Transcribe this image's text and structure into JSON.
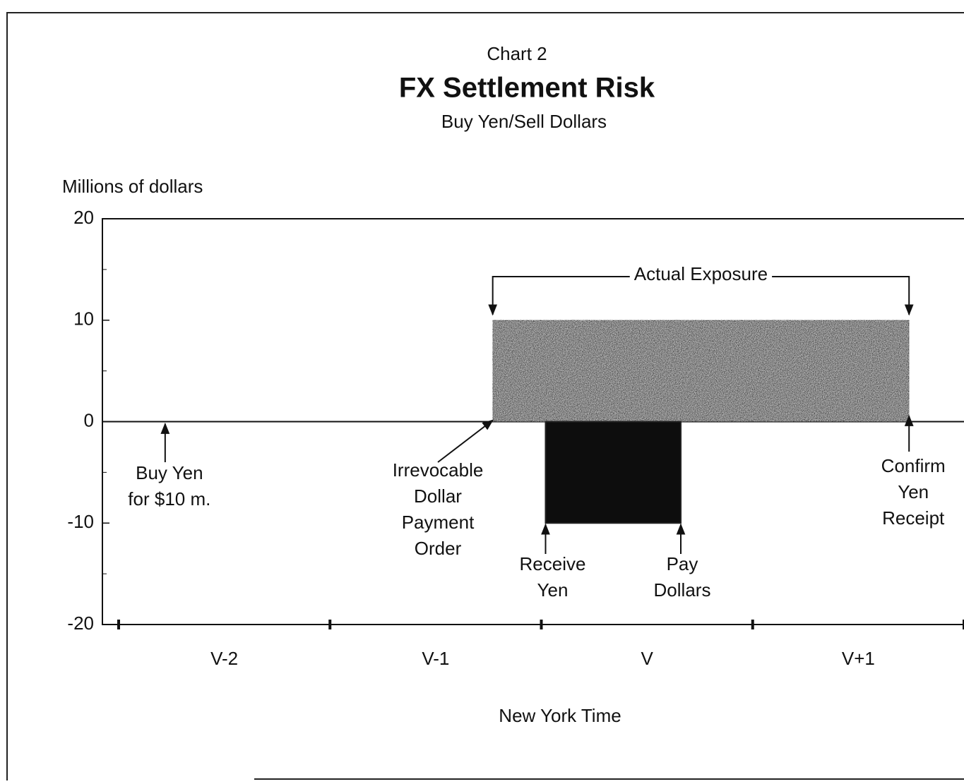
{
  "chart_data": {
    "type": "bar",
    "chart_label": "Chart 2",
    "title": "FX Settlement Risk",
    "subtitle": "Buy Yen/Sell Dollars",
    "y_label": "Millions of dollars",
    "x_label": "New York Time",
    "categories": [
      "V-2",
      "V-1",
      "V",
      "V+1"
    ],
    "xlim": [
      0,
      4
    ],
    "xticks": [
      0,
      1,
      2,
      3,
      4
    ],
    "ylim": [
      -20,
      20
    ],
    "yticks": [
      20,
      10,
      0,
      -10,
      -20
    ],
    "bars": [
      {
        "start": 1.77,
        "end": 3.74,
        "value": 10,
        "color": "#4d4d4d"
      },
      {
        "start": 2.02,
        "end": 2.66,
        "value": -10,
        "color": "#0d0d0d"
      }
    ],
    "bracket": {
      "text": "Actual Exposure",
      "start": 1.77,
      "end": 3.74
    },
    "annotations": [
      {
        "lines": [
          "Buy Yen",
          "for $10 m."
        ],
        "x": 0.22
      },
      {
        "lines": [
          "Irrevocable",
          "Dollar",
          "Payment",
          "Order"
        ],
        "x": 1.77
      },
      {
        "lines": [
          "Receive",
          "Yen"
        ],
        "x": 2.02
      },
      {
        "lines": [
          "Pay",
          "Dollars"
        ],
        "x": 2.66
      },
      {
        "lines": [
          "Confirm",
          "Yen",
          "Receipt"
        ],
        "x": 3.74
      }
    ]
  }
}
